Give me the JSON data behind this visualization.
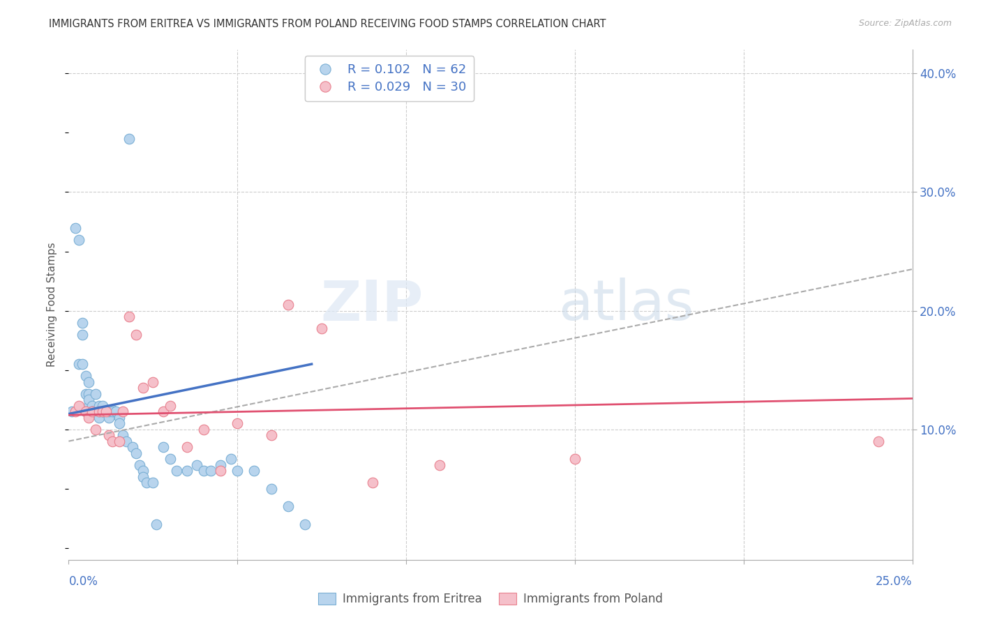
{
  "title": "IMMIGRANTS FROM ERITREA VS IMMIGRANTS FROM POLAND RECEIVING FOOD STAMPS CORRELATION CHART",
  "source": "Source: ZipAtlas.com",
  "ylabel": "Receiving Food Stamps",
  "xlim": [
    0.0,
    0.25
  ],
  "ylim": [
    -0.01,
    0.42
  ],
  "background_color": "#ffffff",
  "grid_color": "#cccccc",
  "eritrea_color": "#b8d4ed",
  "eritrea_edge_color": "#7aafd4",
  "poland_color": "#f5c0ca",
  "poland_edge_color": "#e8808e",
  "legend_eritrea_R": "0.102",
  "legend_eritrea_N": "62",
  "legend_poland_R": "0.029",
  "legend_poland_N": "30",
  "watermark_zip": "ZIP",
  "watermark_atlas": "atlas",
  "eritrea_x": [
    0.001,
    0.002,
    0.003,
    0.003,
    0.004,
    0.004,
    0.004,
    0.005,
    0.005,
    0.005,
    0.005,
    0.006,
    0.006,
    0.006,
    0.006,
    0.007,
    0.007,
    0.007,
    0.007,
    0.008,
    0.008,
    0.008,
    0.009,
    0.009,
    0.009,
    0.01,
    0.01,
    0.01,
    0.011,
    0.011,
    0.012,
    0.012,
    0.013,
    0.013,
    0.014,
    0.015,
    0.015,
    0.016,
    0.017,
    0.018,
    0.019,
    0.02,
    0.021,
    0.022,
    0.022,
    0.023,
    0.025,
    0.026,
    0.028,
    0.03,
    0.032,
    0.035,
    0.038,
    0.04,
    0.042,
    0.045,
    0.048,
    0.05,
    0.055,
    0.06,
    0.065,
    0.07
  ],
  "eritrea_y": [
    0.115,
    0.27,
    0.155,
    0.26,
    0.18,
    0.19,
    0.155,
    0.145,
    0.13,
    0.115,
    0.115,
    0.13,
    0.14,
    0.12,
    0.125,
    0.115,
    0.12,
    0.115,
    0.115,
    0.115,
    0.13,
    0.115,
    0.12,
    0.11,
    0.115,
    0.115,
    0.12,
    0.115,
    0.115,
    0.115,
    0.11,
    0.115,
    0.116,
    0.115,
    0.115,
    0.11,
    0.105,
    0.095,
    0.09,
    0.345,
    0.085,
    0.08,
    0.07,
    0.065,
    0.06,
    0.055,
    0.055,
    0.02,
    0.085,
    0.075,
    0.065,
    0.065,
    0.07,
    0.065,
    0.065,
    0.07,
    0.075,
    0.065,
    0.065,
    0.05,
    0.035,
    0.02
  ],
  "poland_x": [
    0.002,
    0.003,
    0.005,
    0.006,
    0.007,
    0.008,
    0.009,
    0.01,
    0.011,
    0.012,
    0.013,
    0.015,
    0.016,
    0.018,
    0.02,
    0.022,
    0.025,
    0.028,
    0.03,
    0.035,
    0.04,
    0.045,
    0.05,
    0.06,
    0.065,
    0.075,
    0.09,
    0.11,
    0.15,
    0.24
  ],
  "poland_y": [
    0.115,
    0.12,
    0.115,
    0.11,
    0.115,
    0.1,
    0.115,
    0.115,
    0.115,
    0.095,
    0.09,
    0.09,
    0.115,
    0.195,
    0.18,
    0.135,
    0.14,
    0.115,
    0.12,
    0.085,
    0.1,
    0.065,
    0.105,
    0.095,
    0.205,
    0.185,
    0.055,
    0.07,
    0.075,
    0.09
  ],
  "eritrea_trend_x": [
    0.0,
    0.072
  ],
  "eritrea_trend_y": [
    0.113,
    0.155
  ],
  "poland_trend_x": [
    0.0,
    0.25
  ],
  "poland_trend_y": [
    0.112,
    0.126
  ],
  "dashed_trend_x": [
    0.0,
    0.25
  ],
  "dashed_trend_y": [
    0.09,
    0.235
  ],
  "ytick_vals": [
    0.1,
    0.2,
    0.3,
    0.4
  ],
  "ytick_labels": [
    "10.0%",
    "20.0%",
    "30.0%",
    "40.0%"
  ],
  "xtick_vals": [
    0.0,
    0.05,
    0.1,
    0.15,
    0.2,
    0.25
  ]
}
